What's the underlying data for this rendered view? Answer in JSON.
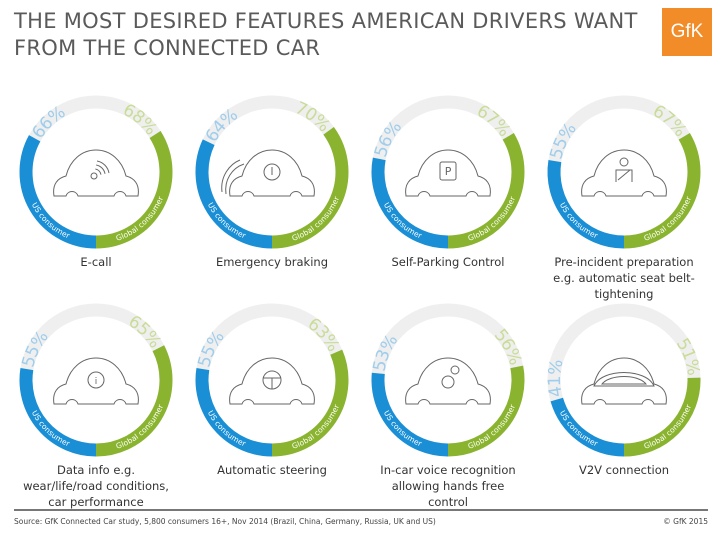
{
  "title_lines": [
    "THE MOST DESIRED FEATURES AMERICAN DRIVERS WANT",
    "FROM THE CONNECTED CAR"
  ],
  "logo_text": "GfK",
  "colors": {
    "us": "#1a8fd6",
    "global": "#8ab42f",
    "track": "#efefef",
    "us_pct": "#9fcdeb",
    "global_pct": "#c9dc98",
    "logo": "#f28c28"
  },
  "chart_data": {
    "type": "donut",
    "series": [
      {
        "name": "US consumer"
      },
      {
        "name": "Global consumer"
      }
    ],
    "items": [
      {
        "label": "E-call",
        "us": 66,
        "global": 68,
        "icon": "car-wifi-icon"
      },
      {
        "label": "Emergency braking",
        "us": 64,
        "global": 70,
        "icon": "car-braking-icon"
      },
      {
        "label": "Self-Parking Control",
        "us": 56,
        "global": 67,
        "icon": "car-parking-icon"
      },
      {
        "label": "Pre-incident preparation e.g. automatic seat belt-tightening",
        "us": 55,
        "global": 67,
        "icon": "car-seatbelt-icon"
      },
      {
        "label": "Data info e.g. wear/life/road conditions, car performance",
        "us": 55,
        "global": 65,
        "icon": "car-info-icon"
      },
      {
        "label": "Automatic steering",
        "us": 55,
        "global": 63,
        "icon": "car-steering-icon"
      },
      {
        "label": "In-car voice recognition allowing hands free control",
        "us": 53,
        "global": 56,
        "icon": "car-voice-icon"
      },
      {
        "label": "V2V connection",
        "us": 41,
        "global": 51,
        "icon": "car-v2v-icon"
      }
    ]
  },
  "footer": {
    "source": "Source: GfK Connected Car study, 5,800 consumers 16+, Nov 2014 (Brazil, China, Germany, Russia, UK and US)",
    "copyright": "© GfK 2015"
  }
}
